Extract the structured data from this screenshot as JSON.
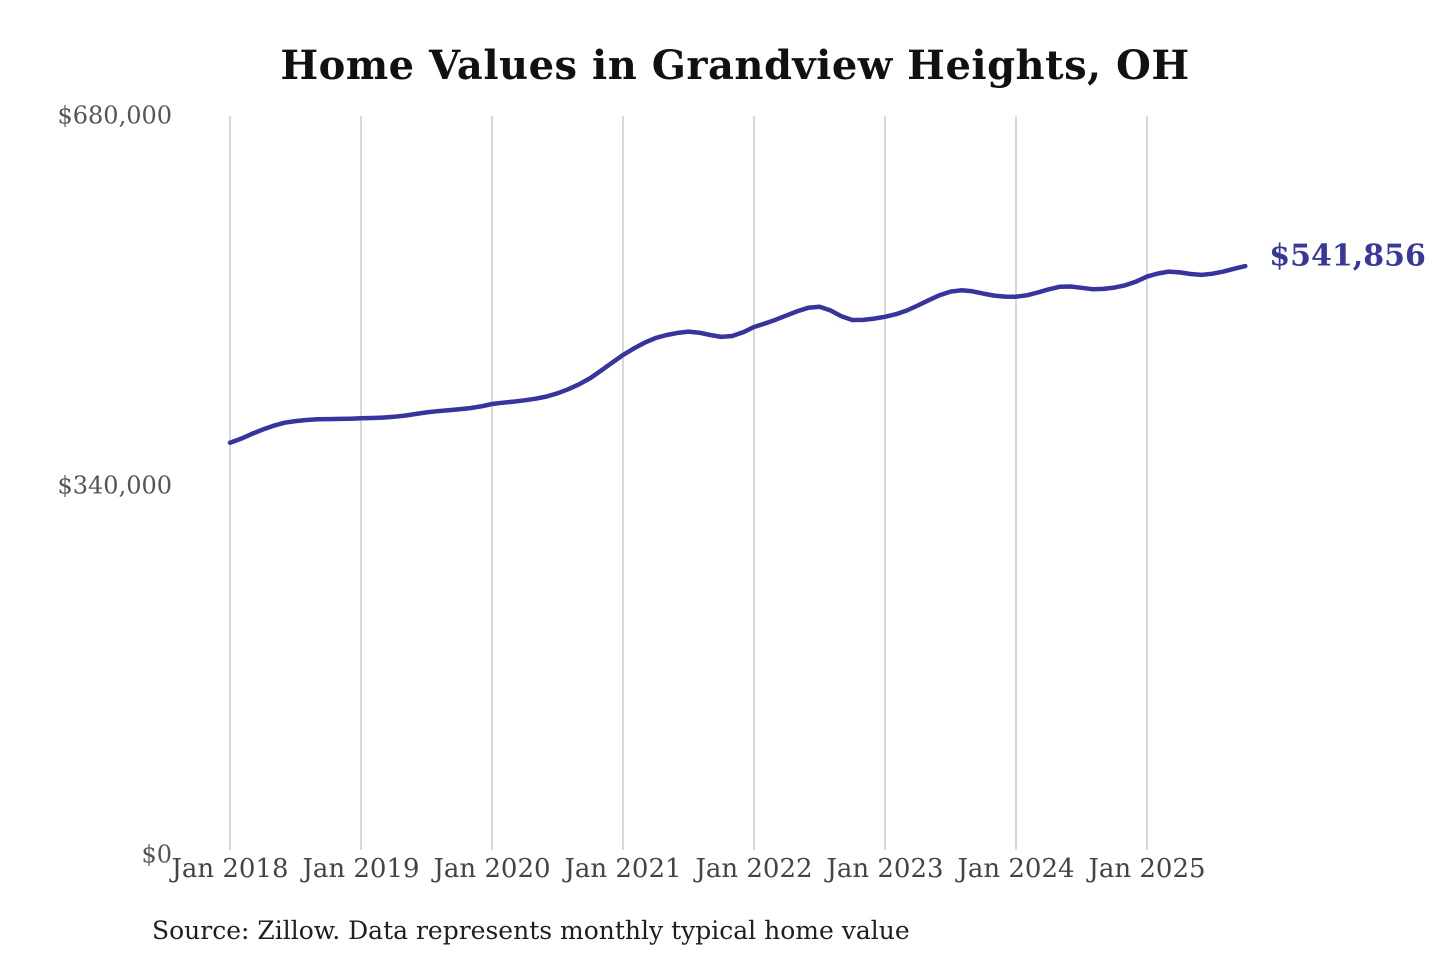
{
  "title": "Home Values in Grandview Heights, OH",
  "source_note": "Source: Zillow. Data represents monthly typical home value",
  "end_label": "$541,856",
  "colors": {
    "line": "#38349d",
    "end_label": "#37379c",
    "gridline": "#cccccc",
    "y_tick": "#555555",
    "x_tick": "#444444",
    "title": "#111111",
    "source": "#1e1e1e",
    "background": "#ffffff"
  },
  "y_axis": {
    "ticks": [
      {
        "label": "$680,000",
        "value": 680000
      },
      {
        "label": "$340,000",
        "value": 340000
      },
      {
        "label": "$0",
        "value": 0
      }
    ]
  },
  "x_axis": {
    "tick_labels": [
      "Jan 2018",
      "Jan 2019",
      "Jan 2020",
      "Jan 2021",
      "Jan 2022",
      "Jan 2023",
      "Jan 2024",
      "Jan 2025"
    ]
  },
  "chart_data": {
    "type": "line",
    "title": "Home Values in Grandview Heights, OH",
    "x_unit": "month",
    "x_start": "Jan 2018",
    "x_end": "Oct 2025",
    "x_tick_labels": [
      "Jan 2018",
      "Jan 2019",
      "Jan 2020",
      "Jan 2021",
      "Jan 2022",
      "Jan 2023",
      "Jan 2024",
      "Jan 2025"
    ],
    "ylim": [
      0,
      680000
    ],
    "y_tick_values": [
      0,
      340000,
      680000
    ],
    "grid": "vertical-only",
    "legend": "none",
    "series": [
      {
        "name": "Typical home value (USD)",
        "values": [
          379400,
          383000,
          387500,
          391500,
          395000,
          397800,
          399300,
          400300,
          400900,
          401100,
          401300,
          401500,
          401800,
          402100,
          402500,
          403200,
          404300,
          405800,
          407300,
          408400,
          409300,
          410200,
          411200,
          412800,
          415000,
          416200,
          417200,
          418400,
          419900,
          421900,
          424800,
          428600,
          433200,
          438800,
          445800,
          453000,
          460100,
          466200,
          471500,
          475800,
          478500,
          480400,
          481600,
          480600,
          478500,
          476700,
          477600,
          481000,
          485800,
          489100,
          492600,
          496600,
          500500,
          503600,
          504500,
          501100,
          495800,
          492300,
          492400,
          493600,
          495200,
          497600,
          501000,
          505600,
          510500,
          515100,
          518400,
          519600,
          518700,
          516600,
          514700,
          513800,
          513700,
          515000,
          517600,
          520500,
          522800,
          523100,
          521900,
          520600,
          520900,
          522100,
          524200,
          527600,
          532200,
          535100,
          536800,
          536100,
          534600,
          533800,
          534900,
          536800,
          539500,
          541856
        ]
      }
    ],
    "last_value": 541856,
    "last_point_label": "$541,856"
  }
}
